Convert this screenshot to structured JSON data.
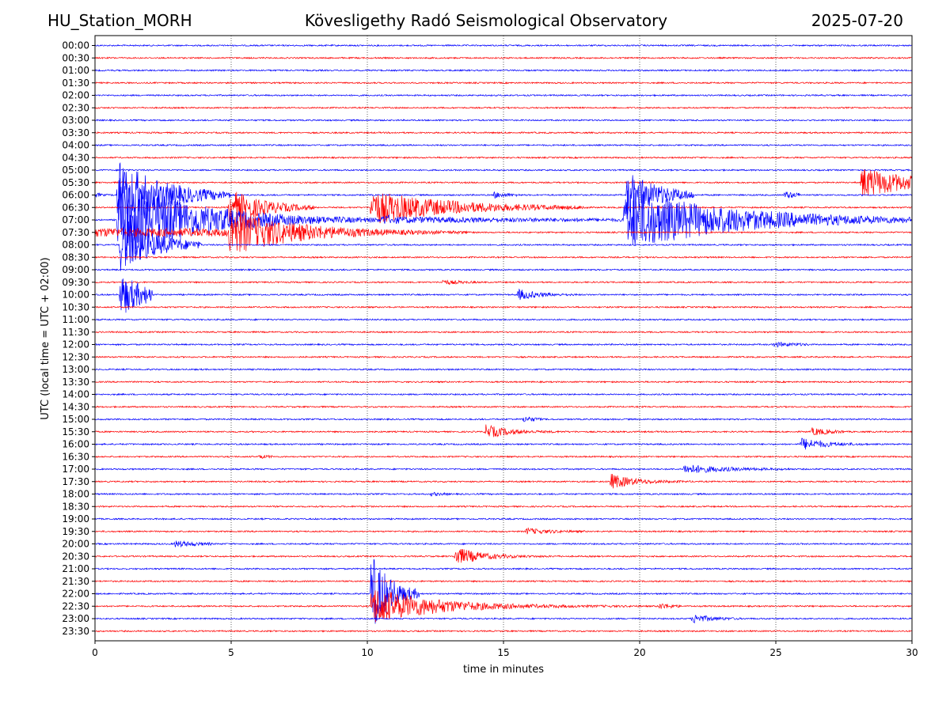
{
  "header": {
    "station": "HU_Station_MORH",
    "observatory": "Kövesligethy Radó Seismological Observatory",
    "date": "2025-07-20"
  },
  "chart_data": {
    "type": "line",
    "subtype": "helicorder",
    "xlabel": "time in minutes",
    "ylabel": "UTC (local time = UTC + 02:00)",
    "xlim": [
      0,
      30
    ],
    "xticks": [
      0,
      5,
      10,
      15,
      20,
      25,
      30
    ],
    "vertical_grid": "dotted at every x tick",
    "trace_colors": [
      "#0000ff",
      "#ff0000"
    ],
    "rows": [
      "00:00",
      "00:30",
      "01:00",
      "01:30",
      "02:00",
      "02:30",
      "03:00",
      "03:30",
      "04:00",
      "04:30",
      "05:00",
      "05:30",
      "06:00",
      "06:30",
      "07:00",
      "07:30",
      "08:00",
      "08:30",
      "09:00",
      "09:30",
      "10:00",
      "10:30",
      "11:00",
      "11:30",
      "12:00",
      "12:30",
      "13:00",
      "13:30",
      "14:00",
      "14:30",
      "15:00",
      "15:30",
      "16:00",
      "16:30",
      "17:00",
      "17:30",
      "18:00",
      "18:30",
      "19:00",
      "19:30",
      "20:00",
      "20:30",
      "21:00",
      "21:30",
      "22:00",
      "22:30",
      "23:00",
      "23:30"
    ],
    "events": [
      {
        "row": "05:30",
        "start_min": 28.1,
        "duration_min": 1.9,
        "amplitude": 20,
        "decay": 0.5
      },
      {
        "row": "06:00",
        "start_min": 0.0,
        "duration_min": 0.8,
        "amplitude": 3,
        "decay": 5
      },
      {
        "row": "06:00",
        "start_min": 0.8,
        "duration_min": 4.2,
        "amplitude": 45,
        "decay": 0.6
      },
      {
        "row": "06:00",
        "start_min": 14.6,
        "duration_min": 1.0,
        "amplitude": 4,
        "decay": 2
      },
      {
        "row": "06:00",
        "start_min": 19.5,
        "duration_min": 2.5,
        "amplitude": 30,
        "decay": 0.8
      },
      {
        "row": "06:00",
        "start_min": 25.3,
        "duration_min": 0.6,
        "amplitude": 5,
        "decay": 2
      },
      {
        "row": "06:30",
        "start_min": 4.9,
        "duration_min": 3.2,
        "amplitude": 24,
        "decay": 0.8
      },
      {
        "row": "06:30",
        "start_min": 10.1,
        "duration_min": 8.0,
        "amplitude": 22,
        "decay": 0.35
      },
      {
        "row": "07:00",
        "start_min": 0.8,
        "duration_min": 10.0,
        "amplitude": 55,
        "decay": 0.35
      },
      {
        "row": "07:00",
        "start_min": 10.5,
        "duration_min": 9.0,
        "amplitude": 4,
        "decay": 0.15
      },
      {
        "row": "07:00",
        "start_min": 19.4,
        "duration_min": 10.6,
        "amplitude": 40,
        "decay": 0.25
      },
      {
        "row": "07:30",
        "start_min": 0.0,
        "duration_min": 4.9,
        "amplitude": 5,
        "decay": 0.05
      },
      {
        "row": "07:30",
        "start_min": 4.9,
        "duration_min": 9.0,
        "amplitude": 30,
        "decay": 0.4
      },
      {
        "row": "08:00",
        "start_min": 0.9,
        "duration_min": 3.0,
        "amplitude": 38,
        "decay": 0.8
      },
      {
        "row": "09:30",
        "start_min": 12.7,
        "duration_min": 1.4,
        "amplitude": 3,
        "decay": 1.5
      },
      {
        "row": "10:00",
        "start_min": 15.5,
        "duration_min": 2.3,
        "amplitude": 7,
        "decay": 1.4
      },
      {
        "row": "10:00",
        "start_min": 0.9,
        "duration_min": 1.2,
        "amplitude": 28,
        "decay": 1.0
      },
      {
        "row": "12:00",
        "start_min": 24.9,
        "duration_min": 1.3,
        "amplitude": 3,
        "decay": 1.2
      },
      {
        "row": "15:00",
        "start_min": 15.7,
        "duration_min": 0.7,
        "amplitude": 4,
        "decay": 2
      },
      {
        "row": "15:30",
        "start_min": 14.3,
        "duration_min": 3.5,
        "amplitude": 9,
        "decay": 1.2
      },
      {
        "row": "15:30",
        "start_min": 26.3,
        "duration_min": 1.2,
        "amplitude": 5,
        "decay": 1.5
      },
      {
        "row": "16:00",
        "start_min": 25.9,
        "duration_min": 2.5,
        "amplitude": 8,
        "decay": 1.2
      },
      {
        "row": "16:30",
        "start_min": 6.0,
        "duration_min": 0.5,
        "amplitude": 2,
        "decay": 2
      },
      {
        "row": "17:00",
        "start_min": 21.6,
        "duration_min": 4.0,
        "amplitude": 6,
        "decay": 0.7
      },
      {
        "row": "17:30",
        "start_min": 18.9,
        "duration_min": 3.0,
        "amplitude": 10,
        "decay": 1.2
      },
      {
        "row": "18:00",
        "start_min": 12.3,
        "duration_min": 0.7,
        "amplitude": 2,
        "decay": 2
      },
      {
        "row": "19:30",
        "start_min": 15.8,
        "duration_min": 2.2,
        "amplitude": 4,
        "decay": 1.2
      },
      {
        "row": "20:00",
        "start_min": 2.9,
        "duration_min": 1.4,
        "amplitude": 4,
        "decay": 1.2
      },
      {
        "row": "20:30",
        "start_min": 13.2,
        "duration_min": 4.0,
        "amplitude": 12,
        "decay": 1.1
      },
      {
        "row": "22:00",
        "start_min": 10.1,
        "duration_min": 1.8,
        "amplitude": 55,
        "decay": 1.4
      },
      {
        "row": "22:30",
        "start_min": 10.1,
        "duration_min": 10.0,
        "amplitude": 25,
        "decay": 0.45
      },
      {
        "row": "22:30",
        "start_min": 20.7,
        "duration_min": 0.8,
        "amplitude": 4,
        "decay": 2
      },
      {
        "row": "23:00",
        "start_min": 21.9,
        "duration_min": 1.8,
        "amplitude": 6,
        "decay": 1.5
      }
    ]
  }
}
